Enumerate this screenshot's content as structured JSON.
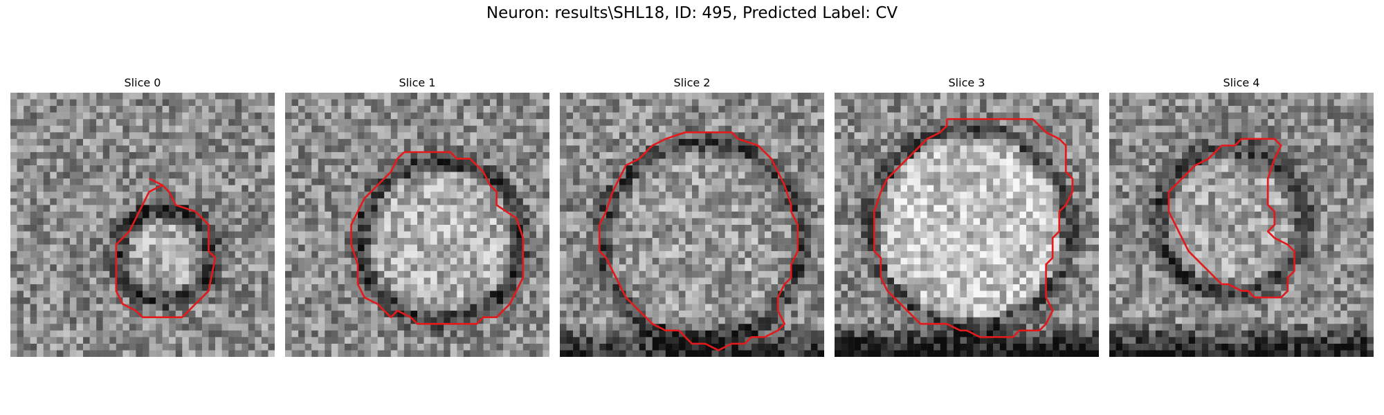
{
  "figure": {
    "title": "Neuron: results\\SHL18, ID: 495, Predicted Label: CV"
  },
  "slices": [
    {
      "title": "Slice 0"
    },
    {
      "title": "Slice 1"
    },
    {
      "title": "Slice 2"
    },
    {
      "title": "Slice 3"
    },
    {
      "title": "Slice 4"
    }
  ],
  "colors": {
    "contour": "#e31a1c",
    "cell_interior": "#bcbcbc",
    "membrane": "#4a4a4a",
    "background_noise": "#9a9a9a"
  }
}
